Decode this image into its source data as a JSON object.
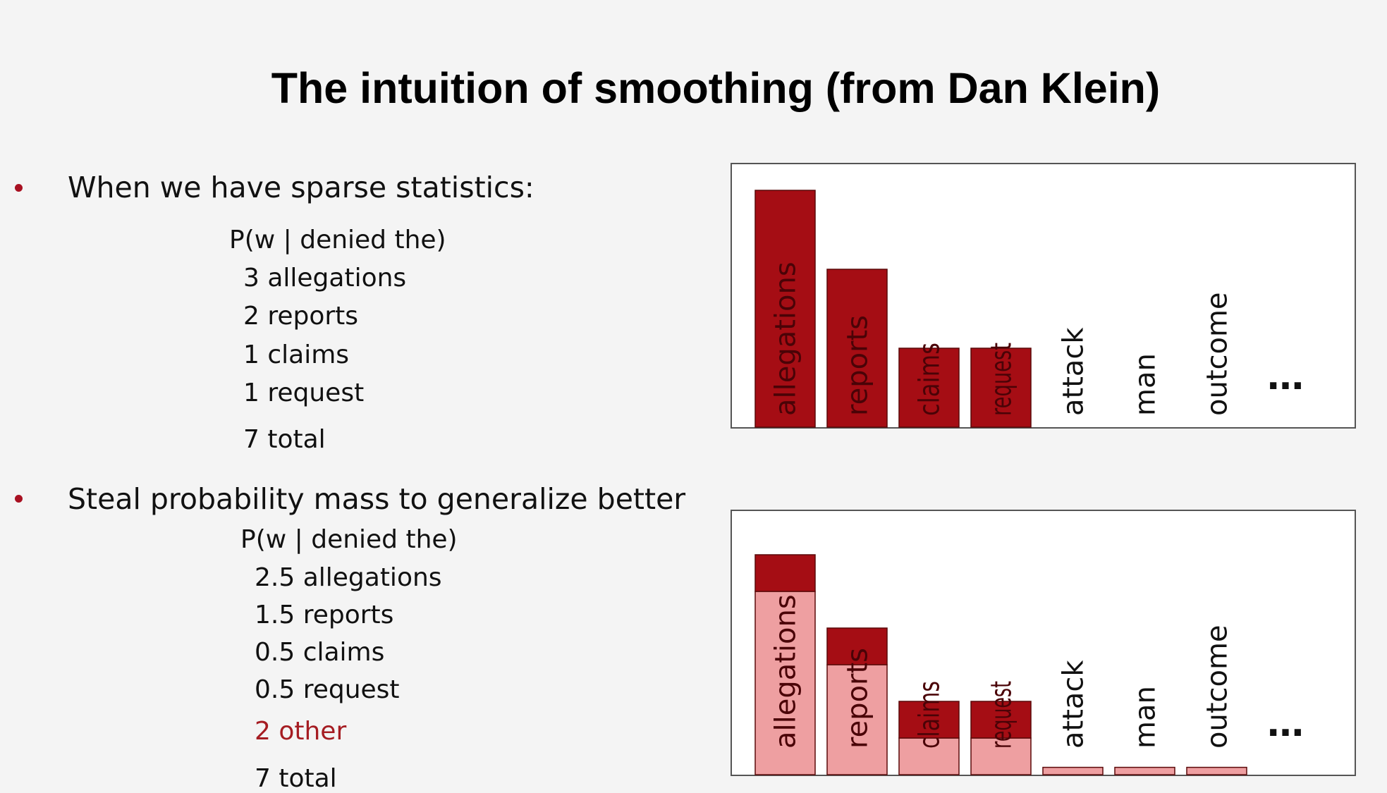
{
  "slide": {
    "title": "The intuition of smoothing (from Dan Klein)",
    "bullets": [
      {
        "text": "When we have sparse statistics:",
        "lines": [
          {
            "text": "P(w | denied the)"
          },
          {
            "text": "3 allegations"
          },
          {
            "text": "2 reports"
          },
          {
            "text": "1 claims"
          },
          {
            "text": "1 request"
          },
          {
            "text": "7 total"
          }
        ]
      },
      {
        "text": "Steal probability mass to generalize better",
        "lines": [
          {
            "text": "P(w | denied the)"
          },
          {
            "text": "2.5 allegations"
          },
          {
            "text": "1.5 reports"
          },
          {
            "text": "0.5 claims"
          },
          {
            "text": "0.5 request"
          },
          {
            "text": "2 other",
            "color": "#a51c22"
          },
          {
            "text": "7 total"
          }
        ]
      }
    ],
    "colors": {
      "bullet": "#a81021",
      "bar_dark": "#a50d14",
      "bar_light": "#ee9fa1"
    }
  },
  "chart_data": [
    {
      "type": "bar",
      "categories": [
        "allegations",
        "reports",
        "claims",
        "request",
        "attack",
        "man",
        "outcome"
      ],
      "values": [
        3,
        2,
        1,
        1,
        0,
        0,
        0
      ],
      "ylim": [
        0,
        3
      ],
      "ellipsis": "…",
      "grid": false
    },
    {
      "type": "bar",
      "categories": [
        "allegations",
        "reports",
        "claims",
        "request",
        "attack",
        "man",
        "outcome"
      ],
      "series": [
        {
          "values": [
            2.5,
            1.5,
            0.5,
            0.5,
            0.1,
            0.1,
            0.1
          ],
          "color": "#ee9fa1"
        },
        {
          "values": [
            0.5,
            0.5,
            0.5,
            0.5,
            0,
            0,
            0
          ],
          "color": "#a50d14"
        }
      ],
      "ylim": [
        0,
        3
      ],
      "ellipsis": "…",
      "grid": false
    }
  ]
}
